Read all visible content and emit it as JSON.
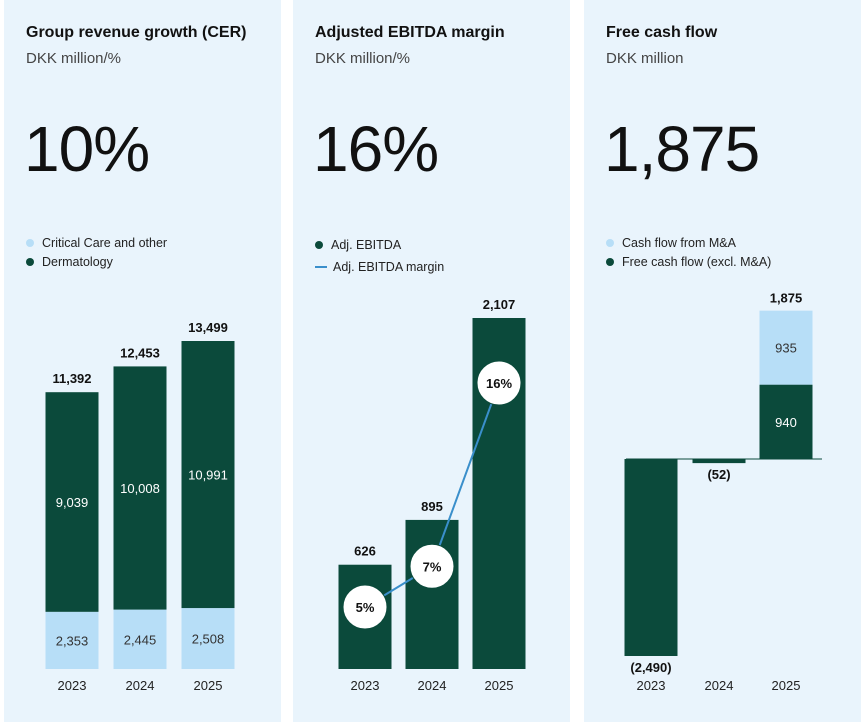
{
  "colors": {
    "dark": "#0b4a3b",
    "light": "#b7def7",
    "line": "#3a8fcb",
    "panel_bg": "#e9f4fc"
  },
  "panels": [
    {
      "title": "Group revenue growth (CER)",
      "subtitle": "DKK million/%",
      "headline": "10%",
      "legend": [
        {
          "label": "Critical Care and other",
          "color": "#b7def7",
          "shape": "dot"
        },
        {
          "label": "Dermatology",
          "color": "#0b4a3b",
          "shape": "dot"
        }
      ]
    },
    {
      "title": "Adjusted EBITDA margin",
      "subtitle": "DKK million/%",
      "headline": "16%",
      "legend": [
        {
          "label": "Adj. EBITDA",
          "color": "#0b4a3b",
          "shape": "dot"
        },
        {
          "label": "Adj. EBITDA margin",
          "color": "#3a8fcb",
          "shape": "line"
        }
      ]
    },
    {
      "title": "Free cash flow",
      "subtitle": "DKK million",
      "headline": "1,875",
      "legend": [
        {
          "label": "Cash flow from M&A",
          "color": "#b7def7",
          "shape": "dot"
        },
        {
          "label": "Free cash flow (excl. M&A)",
          "color": "#0b4a3b",
          "shape": "dot"
        }
      ]
    }
  ],
  "chart_data": [
    {
      "type": "bar",
      "stacked": true,
      "categories": [
        "2023",
        "2024",
        "2025"
      ],
      "series": [
        {
          "name": "Critical Care and other",
          "values": [
            2353,
            2445,
            2508
          ],
          "labels": [
            "2,353",
            "2,445",
            "2,508"
          ]
        },
        {
          "name": "Dermatology",
          "values": [
            9039,
            10008,
            10991
          ],
          "labels": [
            "9,039",
            "10,008",
            "10,991"
          ]
        }
      ],
      "totals": [
        11392,
        12453,
        13499
      ],
      "total_labels": [
        "11,392",
        "12,453",
        "13,499"
      ],
      "ylim": [
        0,
        13499
      ]
    },
    {
      "type": "bar",
      "categories": [
        "2023",
        "2024",
        "2025"
      ],
      "series": [
        {
          "name": "Adj. EBITDA",
          "values": [
            626,
            895,
            2107
          ],
          "labels": [
            "626",
            "895",
            "2,107"
          ]
        },
        {
          "name": "Adj. EBITDA margin",
          "type": "line",
          "values": [
            5,
            7,
            16
          ],
          "labels": [
            "5%",
            "7%",
            "16%"
          ]
        }
      ],
      "ylim": [
        0,
        2107
      ]
    },
    {
      "type": "bar",
      "stacked": true,
      "categories": [
        "2023",
        "2024",
        "2025"
      ],
      "series": [
        {
          "name": "Free cash flow (excl. M&A)",
          "values": [
            -2490,
            -52,
            940
          ],
          "labels": [
            "(2,490)",
            "(52)",
            "940"
          ]
        },
        {
          "name": "Cash flow from M&A",
          "values": [
            0,
            0,
            935
          ],
          "labels": [
            "",
            "",
            "935"
          ]
        }
      ],
      "totals": [
        -2490,
        -52,
        1875
      ],
      "total_labels": [
        "",
        "",
        "1,875"
      ],
      "ylim": [
        -2490,
        1875
      ]
    }
  ]
}
